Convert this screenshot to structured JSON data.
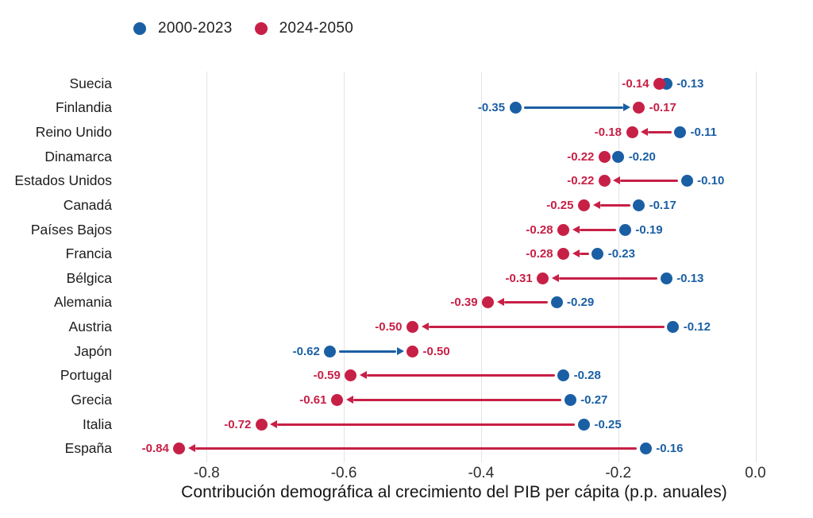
{
  "legend": {
    "items": [
      {
        "label": "2000-2023",
        "color": "#1a5fa4"
      },
      {
        "label": "2024-2050",
        "color": "#c72046"
      }
    ]
  },
  "chart_data": {
    "type": "dumbbell",
    "title": "",
    "xlabel": "Contribución demográfica al crecimiento del PIB per cápita (p.p. anuales)",
    "ylabel": "",
    "xlim": [
      -0.93,
      0.07
    ],
    "grid": "vertical",
    "legend_position": "top-left",
    "x_ticks": [
      -0.8,
      -0.6,
      -0.4,
      -0.2,
      0.0
    ],
    "x_tick_labels": [
      "-0.8",
      "-0.6",
      "-0.4",
      "-0.2",
      "0.0"
    ],
    "series": [
      {
        "name": "2000-2023",
        "key": "start",
        "color": "#1a5fa4"
      },
      {
        "name": "2024-2050",
        "key": "end",
        "color": "#c72046"
      }
    ],
    "arrow_rule": "arrow drawn from 2000-2023 dot to 2024-2050 dot when gap > 0.03; blue when moving right (improvement), red when moving left (decline)",
    "rows": [
      {
        "country": "Suecia",
        "start": -0.13,
        "end": -0.14
      },
      {
        "country": "Finlandia",
        "start": -0.35,
        "end": -0.17
      },
      {
        "country": "Reino Unido",
        "start": -0.11,
        "end": -0.18
      },
      {
        "country": "Dinamarca",
        "start": -0.2,
        "end": -0.22
      },
      {
        "country": "Estados Unidos",
        "start": -0.1,
        "end": -0.22
      },
      {
        "country": "Canadá",
        "start": -0.17,
        "end": -0.25
      },
      {
        "country": "Países Bajos",
        "start": -0.19,
        "end": -0.28
      },
      {
        "country": "Francia",
        "start": -0.23,
        "end": -0.28
      },
      {
        "country": "Bélgica",
        "start": -0.13,
        "end": -0.31
      },
      {
        "country": "Alemania",
        "start": -0.29,
        "end": -0.39
      },
      {
        "country": "Austria",
        "start": -0.12,
        "end": -0.5
      },
      {
        "country": "Japón",
        "start": -0.62,
        "end": -0.5
      },
      {
        "country": "Portugal",
        "start": -0.28,
        "end": -0.59
      },
      {
        "country": "Grecia",
        "start": -0.27,
        "end": -0.61
      },
      {
        "country": "Italia",
        "start": -0.25,
        "end": -0.72
      },
      {
        "country": "España",
        "start": -0.16,
        "end": -0.84
      }
    ]
  }
}
